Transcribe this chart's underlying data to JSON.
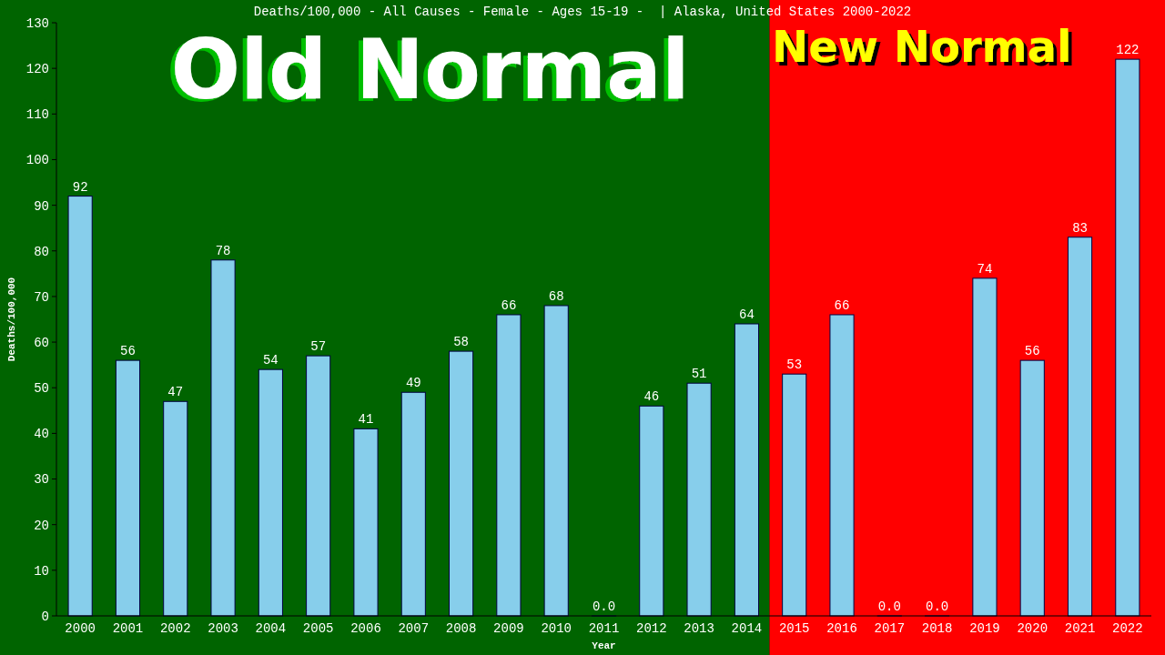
{
  "chart_data": {
    "type": "bar",
    "title": "Deaths/100,000 - All Causes - Female - Ages 15-19 -  | Alaska, United States 2000-2022",
    "xlabel": "Year",
    "ylabel": "Deaths/100,000",
    "categories": [
      "2000",
      "2001",
      "2002",
      "2003",
      "2004",
      "2005",
      "2006",
      "2007",
      "2008",
      "2009",
      "2010",
      "2011",
      "2012",
      "2013",
      "2014",
      "2015",
      "2016",
      "2017",
      "2018",
      "2019",
      "2020",
      "2021",
      "2022"
    ],
    "values": [
      92,
      56,
      47,
      78,
      54,
      57,
      41,
      49,
      58,
      66,
      68,
      0,
      46,
      51,
      64,
      53,
      66,
      0,
      0,
      74,
      56,
      83,
      122
    ],
    "value_labels": [
      "92",
      "56",
      "47",
      "78",
      "54",
      "57",
      "41",
      "49",
      "58",
      "66",
      "68",
      "0.0",
      "46",
      "51",
      "64",
      "53",
      "66",
      "0.0",
      "0.0",
      "74",
      "56",
      "83",
      "122"
    ],
    "color": "#87ceeb",
    "ylim": [
      0,
      130
    ],
    "yticks": [
      0,
      10,
      20,
      30,
      40,
      50,
      60,
      70,
      80,
      90,
      100,
      110,
      120,
      130
    ],
    "grid": false,
    "bands": [
      {
        "axis": "x",
        "from": "2000",
        "to": "2014",
        "label": "Old Normal",
        "color": "#006400"
      },
      {
        "axis": "x",
        "from": "2015",
        "to": "2022",
        "label": "New Normal",
        "color": "#ff0000"
      }
    ]
  }
}
